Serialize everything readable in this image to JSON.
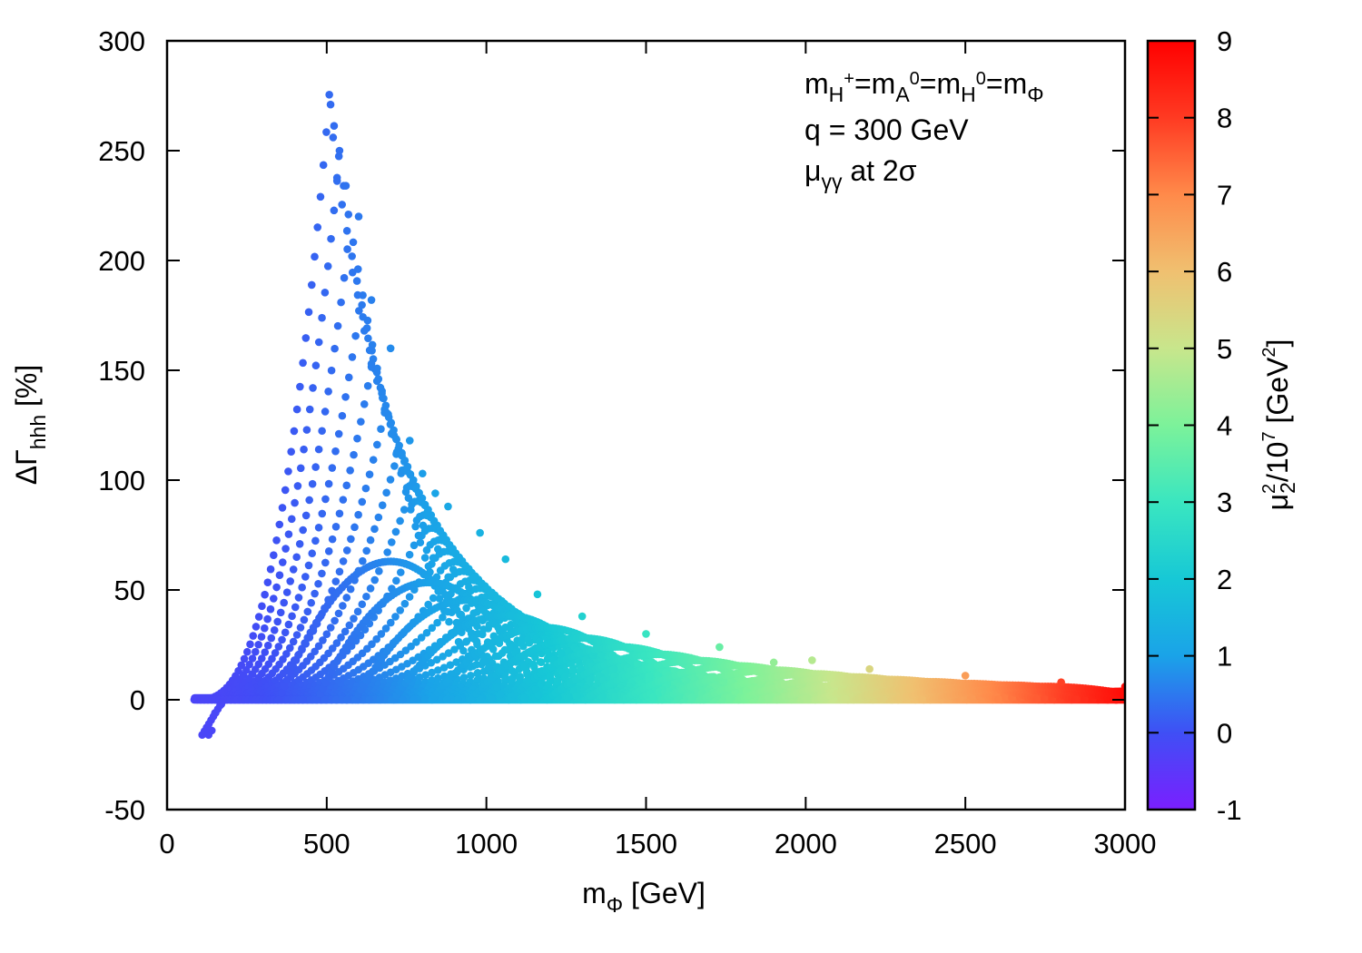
{
  "chart_data": {
    "type": "scatter",
    "title": "",
    "xlabel": {
      "main": "m",
      "sub": "Φ",
      "unit": "[GeV]"
    },
    "ylabel": {
      "main": "ΔΓ",
      "sub": "hhh",
      "unit": "[%]"
    },
    "xlim": [
      0,
      3000
    ],
    "ylim": [
      -50,
      300
    ],
    "xticks": [
      "0",
      "500",
      "1000",
      "1500",
      "2000",
      "2500",
      "3000"
    ],
    "yticks": [
      "-50",
      "0",
      "50",
      "100",
      "150",
      "200",
      "250",
      "300"
    ],
    "colorbar": {
      "range": [
        -1,
        9
      ],
      "ticks": [
        "-1",
        "0",
        "1",
        "2",
        "3",
        "4",
        "5",
        "6",
        "7",
        "8",
        "9"
      ],
      "label_prefix": "μ",
      "label_sup": "2",
      "label_sub": "2",
      "label_mid": "/10",
      "label_exp": "7",
      "label_unit_pre": "[GeV",
      "label_unit_sup": "2",
      "label_unit_post": "]",
      "colors": [
        "#7a1fff",
        "#3f4ff5",
        "#1aa3e8",
        "#17c8d6",
        "#3ae6c0",
        "#7cf29a",
        "#c8e68c",
        "#f0c070",
        "#ff8a4a",
        "#ff3a22",
        "#ff0000"
      ]
    },
    "annotations": {
      "line1": {
        "m": "m",
        "s1": "H",
        "sup1": "+",
        "eq1": "=m",
        "s2": "A",
        "sup2": "0",
        "eq2": "=m",
        "s3": "H",
        "sup3": "0",
        "eq3": "=m",
        "s4": "Φ"
      },
      "line2": "q = 300 GeV",
      "line3": {
        "mu": "μ",
        "sub": "γγ",
        "rest": " at 2σ"
      }
    },
    "series": [
      {
        "name": "peak_points",
        "x": [
          512,
          520,
          540,
          560,
          600,
          640,
          700,
          760,
          800,
          840,
          880,
          980,
          1060
        ],
        "y": [
          271,
          256,
          250,
          234,
          220,
          182,
          160,
          118,
          103,
          94,
          88,
          76,
          64
        ]
      },
      {
        "name": "negative_points",
        "x": [
          130,
          140,
          150,
          170
        ],
        "y": [
          -16,
          -14,
          -6,
          -2
        ]
      },
      {
        "name": "tail_upper",
        "x": [
          1160,
          1300,
          1500,
          1730,
          1900,
          2020,
          2200,
          2500,
          2800,
          3000
        ],
        "y": [
          48,
          38,
          30,
          24,
          17,
          18,
          14,
          11,
          8,
          6
        ]
      }
    ]
  }
}
